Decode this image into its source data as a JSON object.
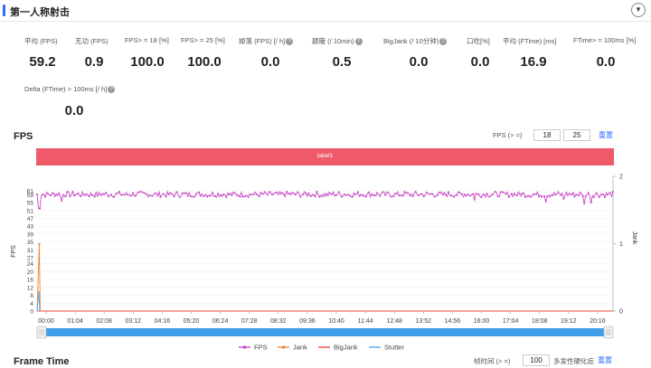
{
  "header": {
    "title": "第一人称射击",
    "collapse_icon": "chevron-down-icon"
  },
  "metrics": [
    {
      "label": "平均 (FPS)",
      "value": "59.2",
      "help": false
    },
    {
      "label": "无功 (FPS)",
      "value": "0.9",
      "help": false
    },
    {
      "label": "FPS> = 18 [%]",
      "value": "100.0",
      "help": false
    },
    {
      "label": "FPS> = 25 [%]",
      "value": "100.0",
      "help": false
    },
    {
      "label": "掉落 (FPS) [/ h]",
      "value": "0.0",
      "help": true
    },
    {
      "label": "颠簸 (/ 10min)",
      "value": "0.5",
      "help": true
    },
    {
      "label": "BigJank (/ 10分钟)",
      "value": "0.0",
      "help": true
    },
    {
      "label": "口吃[%]",
      "value": "0.0",
      "help": false
    },
    {
      "label": "平均 (FTime) [ms]",
      "value": "16.9",
      "help": false
    },
    {
      "label": "FTime> = 100ms [%]",
      "value": "0.0",
      "help": false
    },
    {
      "label": "Delta (FTime) > 100ms [/ h]",
      "value": "0.0",
      "help": true
    }
  ],
  "fps_section": {
    "title": "FPS",
    "threshold_label": "FPS (> =)",
    "threshold_1": "18",
    "threshold_2": "25",
    "reset_label": "重置",
    "band_label": "label1"
  },
  "frametime_section": {
    "title": "Frame Time",
    "threshold_label": "帧时间 (> =)",
    "threshold_value": "100",
    "extra_label": "多发性硬化症",
    "reset_label": "重置"
  },
  "colors": {
    "fps": "#c84bc9",
    "jank": "#f08a3c",
    "bigjank": "#e8483c",
    "stutter": "#5aa7e6",
    "accent": "#2f6bff",
    "band": "#ee5a6a",
    "slider": "#3ea0e8"
  },
  "chart_data": {
    "type": "line",
    "title": "FPS",
    "xlabel": "",
    "ylabel": "FPS",
    "y2label": "Jank",
    "ylim": [
      0,
      61
    ],
    "y2lim": [
      0,
      2
    ],
    "y_ticks": [
      "0",
      "4",
      "8",
      "12",
      "16",
      "20",
      "24",
      "27",
      "31",
      "35",
      "39",
      "43",
      "47",
      "51",
      "55",
      "59",
      "61"
    ],
    "y2_ticks": [
      "0",
      "1",
      "2"
    ],
    "x_ticks": [
      "00:00",
      "01:04",
      "02:08",
      "03:12",
      "04:16",
      "05:20",
      "06:24",
      "07:28",
      "08:32",
      "09:36",
      "10:40",
      "11:44",
      "12:48",
      "13:52",
      "14:56",
      "16:00",
      "17:04",
      "18:08",
      "19:12",
      "20:16"
    ],
    "duration_seconds": 1290,
    "series": [
      {
        "name": "FPS",
        "baseline": 59.2,
        "noise": 0.9,
        "dips": [
          {
            "t": 5,
            "v": 52
          },
          {
            "t": 55,
            "v": 56
          },
          {
            "t": 980,
            "v": 56
          },
          {
            "t": 1140,
            "v": 55
          },
          {
            "t": 1225,
            "v": 54
          },
          {
            "t": 1240,
            "v": 55
          },
          {
            "t": 1180,
            "v": 57
          }
        ]
      },
      {
        "name": "Jank",
        "points": [
          {
            "t": 0,
            "v": 0
          },
          {
            "t": 5,
            "v": 34
          },
          {
            "t": 7,
            "v": 0
          }
        ]
      },
      {
        "name": "BigJank",
        "points": [
          {
            "t": 0,
            "v": 0
          },
          {
            "t": 1290,
            "v": 0
          }
        ]
      },
      {
        "name": "Stutter",
        "points": [
          {
            "t": 0,
            "v": 0
          },
          {
            "t": 4,
            "v": 10
          },
          {
            "t": 6,
            "v": 0
          }
        ]
      }
    ],
    "legend_position": "bottom",
    "grid": true
  }
}
